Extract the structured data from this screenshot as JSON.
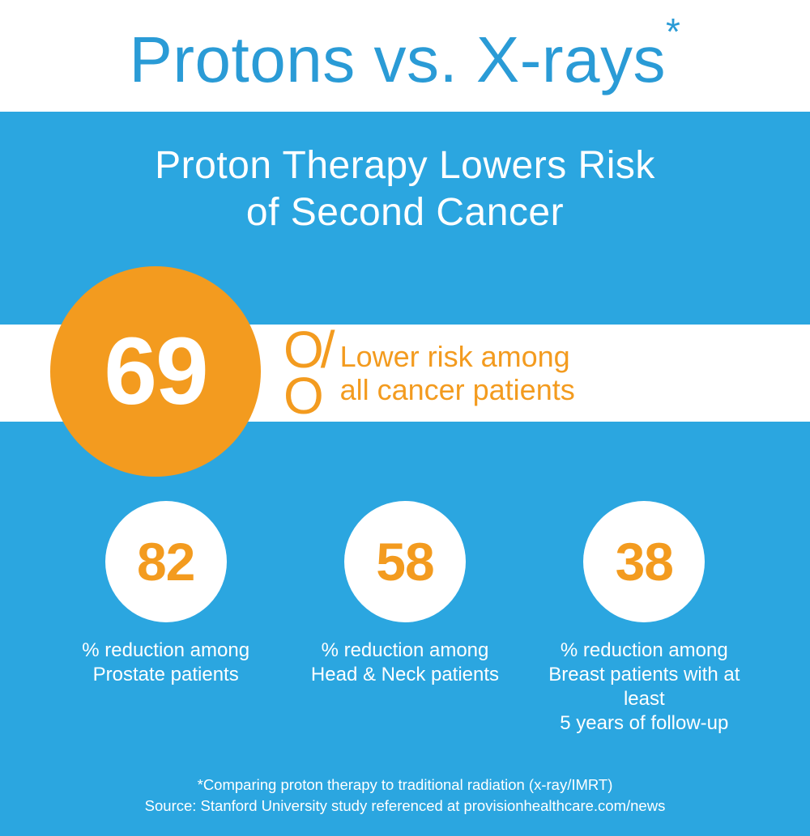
{
  "colors": {
    "title_blue": "#2a9bd6",
    "divider_orange": "#f3a43b",
    "body_blue": "#2ba6e0",
    "accent_orange": "#f39b1f",
    "white": "#ffffff"
  },
  "header": {
    "title": "Protons vs. X-rays",
    "asterisk": "*"
  },
  "subtitle_line1": "Proton Therapy Lowers Risk",
  "subtitle_line2": "of Second Cancer",
  "main_stat": {
    "value": "69",
    "percent_o": "O",
    "percent_slash": "/",
    "percent_o2": "O",
    "label_line1": "Lower risk among",
    "label_line2": "all cancer patients"
  },
  "stats": [
    {
      "value": "82",
      "label_line1": "% reduction among",
      "label_line2": "Prostate patients",
      "label_line3": ""
    },
    {
      "value": "58",
      "label_line1": "% reduction among",
      "label_line2": "Head & Neck patients",
      "label_line3": ""
    },
    {
      "value": "38",
      "label_line1": "% reduction among",
      "label_line2": "Breast patients with at least",
      "label_line3": "5 years of follow-up"
    }
  ],
  "footnote_line1": "*Comparing proton therapy to traditional radiation (x-ray/IMRT)",
  "footnote_line2": "Source: Stanford University study referenced at provisionhealthcare.com/news"
}
